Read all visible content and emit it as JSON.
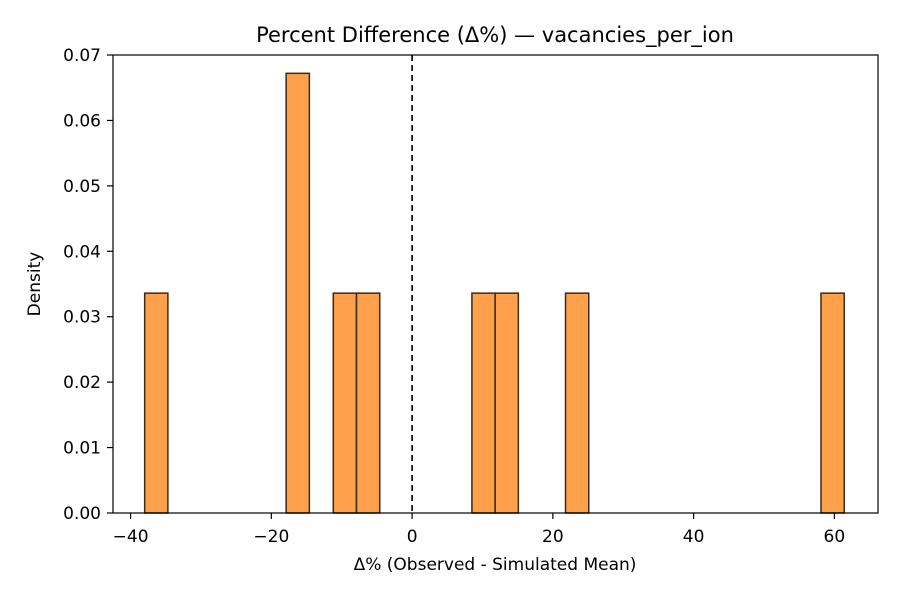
{
  "chart_data": {
    "type": "bar",
    "title": "Percent Difference (Δ%) — vacancies_per_ion",
    "xlabel": "Δ% (Observed - Simulated Mean)",
    "ylabel": "Density",
    "xlim": [
      -42.5,
      66.2
    ],
    "ylim": [
      0,
      0.07
    ],
    "x_ticks": [
      -40,
      -20,
      0,
      20,
      40,
      60
    ],
    "x_tick_labels": [
      "−40",
      "−20",
      "0",
      "20",
      "40",
      "60"
    ],
    "y_ticks": [
      0,
      0.01,
      0.02,
      0.03,
      0.04,
      0.05,
      0.06,
      0.07
    ],
    "y_tick_labels": [
      "0.00",
      "0.01",
      "0.02",
      "0.03",
      "0.04",
      "0.05",
      "0.06",
      "0.07"
    ],
    "bars": [
      {
        "x0": -38.0,
        "x1": -34.7,
        "value": 0.0336
      },
      {
        "x0": -17.9,
        "x1": -14.6,
        "value": 0.0672
      },
      {
        "x0": -11.2,
        "x1": -7.9,
        "value": 0.0336
      },
      {
        "x0": -7.9,
        "x1": -4.6,
        "value": 0.0336
      },
      {
        "x0": 8.5,
        "x1": 11.8,
        "value": 0.0336
      },
      {
        "x0": 11.8,
        "x1": 15.1,
        "value": 0.0336
      },
      {
        "x0": 21.8,
        "x1": 25.1,
        "value": 0.0336
      },
      {
        "x0": 58.1,
        "x1": 61.4,
        "value": 0.0336
      }
    ],
    "reference_line": {
      "x": 0,
      "style": "dashed"
    },
    "grid": false,
    "colors": {
      "bar_fill": "#ffa04a",
      "bar_edge": "#3a2a1a",
      "axis": "#000000",
      "reference": "#000000"
    }
  }
}
